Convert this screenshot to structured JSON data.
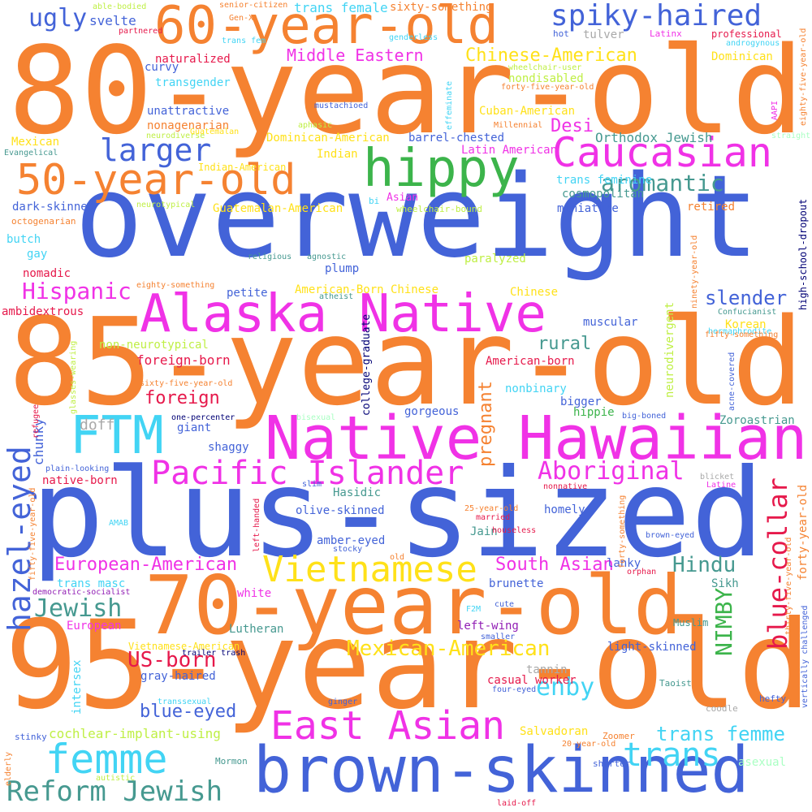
{
  "colors": {
    "orange": "#f58231",
    "blue": "#4363d8",
    "magenta": "#f032e6",
    "green": "#3cb44b",
    "cyan": "#42d4f4",
    "yellow": "#ffe119",
    "red": "#e6194b",
    "teal": "#469990",
    "purple": "#911eb4",
    "navy": "#000075",
    "lime": "#bfef45",
    "pink": "#fabed4",
    "mint": "#aaffc3",
    "apricot": "#ffd8b1",
    "lavender": "#dcbeff",
    "olive": "#808000",
    "brown": "#9a6324",
    "grey": "#a9a9a9",
    "maroon": "#800000"
  },
  "words": [
    {
      "text": "80-year-old",
      "color": "orange"
    },
    {
      "text": "overweight",
      "color": "blue"
    },
    {
      "text": "85-year-old",
      "color": "orange"
    },
    {
      "text": "plus-sized",
      "color": "blue"
    },
    {
      "text": "95-year-old",
      "color": "orange"
    },
    {
      "text": "70-year-old",
      "color": "orange"
    },
    {
      "text": "Native Hawaiian",
      "color": "magenta"
    },
    {
      "text": "brown-skinned",
      "color": "blue"
    },
    {
      "text": "Alaska Native",
      "color": "magenta"
    },
    {
      "text": "60-year-old",
      "color": "orange"
    },
    {
      "text": "50-year-old",
      "color": "orange"
    },
    {
      "text": "hippy",
      "color": "green"
    },
    {
      "text": "Caucasian",
      "color": "magenta"
    },
    {
      "text": "FTM",
      "color": "cyan"
    },
    {
      "text": "Pacific Islander",
      "color": "magenta"
    },
    {
      "text": "East Asian",
      "color": "magenta"
    },
    {
      "text": "femme",
      "color": "cyan"
    },
    {
      "text": "Vietnamese",
      "color": "yellow"
    },
    {
      "text": "hazel-eyed",
      "color": "blue"
    },
    {
      "text": "spiky-haired",
      "color": "blue"
    },
    {
      "text": "larger",
      "color": "blue"
    },
    {
      "text": "Hispanic",
      "color": "magenta"
    },
    {
      "text": "Jewish",
      "color": "teal"
    },
    {
      "text": "Reform Jewish",
      "color": "teal"
    },
    {
      "text": "trans",
      "color": "cyan"
    },
    {
      "text": "blue-collar",
      "color": "red"
    },
    {
      "text": "Aboriginal",
      "color": "magenta"
    },
    {
      "text": "aromantic",
      "color": "teal"
    },
    {
      "text": "ugly",
      "color": "blue"
    },
    {
      "text": "Mexican-American",
      "color": "yellow"
    },
    {
      "text": "NIMBY",
      "color": "green"
    },
    {
      "text": "enby",
      "color": "cyan"
    },
    {
      "text": "US-born",
      "color": "red"
    },
    {
      "text": "trans femme",
      "color": "cyan"
    },
    {
      "text": "Hindu",
      "color": "teal"
    },
    {
      "text": "South Asian",
      "color": "magenta"
    },
    {
      "text": "European-American",
      "color": "magenta"
    },
    {
      "text": "Chinese-American",
      "color": "yellow"
    },
    {
      "text": "Middle Eastern",
      "color": "magenta"
    },
    {
      "text": "slender",
      "color": "blue"
    },
    {
      "text": "pregnant",
      "color": "orange"
    },
    {
      "text": "blue-eyed",
      "color": "blue"
    },
    {
      "text": "Desi",
      "color": "magenta"
    },
    {
      "text": "rural",
      "color": "teal"
    },
    {
      "text": "foreign",
      "color": "red"
    },
    {
      "text": "doff",
      "color": "grey"
    },
    {
      "text": "chunky",
      "color": "blue"
    },
    {
      "text": "cochlear-implant-using",
      "color": "lime"
    },
    {
      "text": "Orthodox Jewish",
      "color": "teal"
    },
    {
      "text": "svelte",
      "color": "blue"
    },
    {
      "text": "trans female",
      "color": "cyan"
    },
    {
      "text": "sixty-something",
      "color": "orange"
    },
    {
      "text": "naturalized",
      "color": "red"
    },
    {
      "text": "curvy",
      "color": "blue"
    },
    {
      "text": "transgender",
      "color": "cyan"
    },
    {
      "text": "unattractive",
      "color": "blue"
    },
    {
      "text": "nonagenarian",
      "color": "orange"
    },
    {
      "text": "Mexican",
      "color": "yellow"
    },
    {
      "text": "Evangelical",
      "color": "teal"
    },
    {
      "text": "Dominican-American",
      "color": "yellow"
    },
    {
      "text": "Indian",
      "color": "yellow"
    },
    {
      "text": "barrel-chested",
      "color": "blue"
    },
    {
      "text": "Latin American",
      "color": "magenta"
    },
    {
      "text": "Cuban-American",
      "color": "yellow"
    },
    {
      "text": "nondisabled",
      "color": "lime"
    },
    {
      "text": "Dominican",
      "color": "yellow"
    },
    {
      "text": "professional",
      "color": "red"
    },
    {
      "text": "tulver",
      "color": "grey"
    },
    {
      "text": "hot",
      "color": "blue"
    },
    {
      "text": "Latinx",
      "color": "magenta"
    },
    {
      "text": "dark-skinned",
      "color": "blue"
    },
    {
      "text": "octogenarian",
      "color": "orange"
    },
    {
      "text": "Indian-American",
      "color": "yellow"
    },
    {
      "text": "Guatemalan-American",
      "color": "yellow"
    },
    {
      "text": "butch",
      "color": "cyan"
    },
    {
      "text": "gay",
      "color": "cyan"
    },
    {
      "text": "nomadic",
      "color": "red"
    },
    {
      "text": "ambidextrous",
      "color": "red"
    },
    {
      "text": "non-neurotypical",
      "color": "lime"
    },
    {
      "text": "foreign-born",
      "color": "red"
    },
    {
      "text": "petite",
      "color": "blue"
    },
    {
      "text": "plump",
      "color": "blue"
    },
    {
      "text": "American-Born Chinese",
      "color": "yellow"
    },
    {
      "text": "Chinese",
      "color": "yellow"
    },
    {
      "text": "muscular",
      "color": "blue"
    },
    {
      "text": "Korean",
      "color": "yellow"
    },
    {
      "text": "American-born",
      "color": "red"
    },
    {
      "text": "nonbinary",
      "color": "cyan"
    },
    {
      "text": "bigger",
      "color": "blue"
    },
    {
      "text": "hippie",
      "color": "green"
    },
    {
      "text": "gorgeous",
      "color": "blue"
    },
    {
      "text": "giant",
      "color": "blue"
    },
    {
      "text": "shaggy",
      "color": "blue"
    },
    {
      "text": "native-born",
      "color": "red"
    },
    {
      "text": "Hasidic",
      "color": "teal"
    },
    {
      "text": "olive-skinned",
      "color": "blue"
    },
    {
      "text": "homely",
      "color": "blue"
    },
    {
      "text": "amber-eyed",
      "color": "blue"
    },
    {
      "text": "Jain",
      "color": "teal"
    },
    {
      "text": "lanky",
      "color": "blue"
    },
    {
      "text": "brunette",
      "color": "blue"
    },
    {
      "text": "Sikh",
      "color": "teal"
    },
    {
      "text": "white",
      "color": "magenta"
    },
    {
      "text": "trans masc",
      "color": "cyan"
    },
    {
      "text": "European",
      "color": "magenta"
    },
    {
      "text": "Lutheran",
      "color": "teal"
    },
    {
      "text": "left-wing",
      "color": "purple"
    },
    {
      "text": "Muslim",
      "color": "teal"
    },
    {
      "text": "light-skinned",
      "color": "blue"
    },
    {
      "text": "Vietnamese-American",
      "color": "yellow"
    },
    {
      "text": "gray-haired",
      "color": "blue"
    },
    {
      "text": "tannin",
      "color": "grey"
    },
    {
      "text": "casual worker",
      "color": "red"
    },
    {
      "text": "Zoroastrian",
      "color": "teal"
    },
    {
      "text": "intersex",
      "color": "cyan"
    },
    {
      "text": "Salvadoran",
      "color": "yellow"
    },
    {
      "text": "Zoomer",
      "color": "orange"
    },
    {
      "text": "asexual",
      "color": "mint"
    },
    {
      "text": "shorter",
      "color": "blue"
    },
    {
      "text": "stinky",
      "color": "blue"
    },
    {
      "text": "Mormon",
      "color": "teal"
    },
    {
      "text": "hefty",
      "color": "blue"
    },
    {
      "text": "coodle",
      "color": "grey"
    },
    {
      "text": "Taoist",
      "color": "teal"
    },
    {
      "text": "able-bodied",
      "color": "lime"
    },
    {
      "text": "senior-citizen",
      "color": "orange"
    },
    {
      "text": "Gen-X",
      "color": "orange"
    },
    {
      "text": "partnered",
      "color": "red"
    },
    {
      "text": "trans fem",
      "color": "cyan"
    },
    {
      "text": "genderless",
      "color": "cyan"
    },
    {
      "text": "androgynous",
      "color": "cyan"
    },
    {
      "text": "wheelchair-user",
      "color": "lime"
    },
    {
      "text": "effeminate",
      "color": "cyan"
    },
    {
      "text": "mustachioed",
      "color": "blue"
    },
    {
      "text": "forty-five-year-old",
      "color": "orange"
    },
    {
      "text": "Millennial",
      "color": "orange"
    },
    {
      "text": "AAPI",
      "color": "magenta"
    },
    {
      "text": "eighty-five-year-old",
      "color": "orange"
    },
    {
      "text": "straight",
      "color": "mint"
    },
    {
      "text": "neurodiverse",
      "color": "lime"
    },
    {
      "text": "Guatemalan",
      "color": "yellow"
    },
    {
      "text": "aphasic",
      "color": "lime"
    },
    {
      "text": "neurotypical",
      "color": "lime"
    },
    {
      "text": "bi",
      "color": "cyan"
    },
    {
      "text": "Asian",
      "color": "magenta"
    },
    {
      "text": "wheelchair-bound",
      "color": "lime"
    },
    {
      "text": "cosmopolitan",
      "color": "teal"
    },
    {
      "text": "trans feminine",
      "color": "cyan"
    },
    {
      "text": "miniature",
      "color": "blue"
    },
    {
      "text": "retired",
      "color": "orange"
    },
    {
      "text": "high-school-dropout",
      "color": "navy"
    },
    {
      "text": "religious",
      "color": "teal"
    },
    {
      "text": "agnostic",
      "color": "teal"
    },
    {
      "text": "paralyzed",
      "color": "lime"
    },
    {
      "text": "eighty-something",
      "color": "orange"
    },
    {
      "text": "atheist",
      "color": "teal"
    },
    {
      "text": "college-graduate",
      "color": "navy"
    },
    {
      "text": "neurodivergent",
      "color": "lime"
    },
    {
      "text": "ninety-year-old",
      "color": "orange"
    },
    {
      "text": "Confucianist",
      "color": "teal"
    },
    {
      "text": "hermaphrodite",
      "color": "cyan"
    },
    {
      "text": "fifty-something",
      "color": "orange"
    },
    {
      "text": "sixty-five-year-old",
      "color": "orange"
    },
    {
      "text": "glasses-wearing",
      "color": "lime"
    },
    {
      "text": "acne-covered",
      "color": "blue"
    },
    {
      "text": "bisexual",
      "color": "mint"
    },
    {
      "text": "one-percenter",
      "color": "navy"
    },
    {
      "text": "big-boned",
      "color": "blue"
    },
    {
      "text": "refugee",
      "color": "red"
    },
    {
      "text": "plain-looking",
      "color": "blue"
    },
    {
      "text": "fifty-five-year-old",
      "color": "orange"
    },
    {
      "text": "slim",
      "color": "blue"
    },
    {
      "text": "left-handed",
      "color": "red"
    },
    {
      "text": "blicket",
      "color": "grey"
    },
    {
      "text": "Latine",
      "color": "magenta"
    },
    {
      "text": "nonnative",
      "color": "red"
    },
    {
      "text": "forty-year-old",
      "color": "orange"
    },
    {
      "text": "AMAB",
      "color": "cyan"
    },
    {
      "text": "25-year-old",
      "color": "orange"
    },
    {
      "text": "married",
      "color": "red"
    },
    {
      "text": "houseless",
      "color": "red"
    },
    {
      "text": "forty-something",
      "color": "orange"
    },
    {
      "text": "brown-eyed",
      "color": "blue"
    },
    {
      "text": "stocky",
      "color": "blue"
    },
    {
      "text": "old",
      "color": "orange"
    },
    {
      "text": "orphan",
      "color": "red"
    },
    {
      "text": "thirty-five-year-old",
      "color": "orange"
    },
    {
      "text": "democratic-socialist",
      "color": "purple"
    },
    {
      "text": "F2M",
      "color": "cyan"
    },
    {
      "text": "cute",
      "color": "blue"
    },
    {
      "text": "smaller",
      "color": "blue"
    },
    {
      "text": "vertically challenged",
      "color": "blue"
    },
    {
      "text": "trailer trash",
      "color": "navy"
    },
    {
      "text": "ginger",
      "color": "blue"
    },
    {
      "text": "four-eyed",
      "color": "blue"
    },
    {
      "text": "transsexual",
      "color": "cyan"
    },
    {
      "text": "elderly",
      "color": "orange"
    },
    {
      "text": "20-year-old",
      "color": "orange"
    },
    {
      "text": "autistic",
      "color": "lime"
    },
    {
      "text": "laid-off",
      "color": "red"
    }
  ]
}
